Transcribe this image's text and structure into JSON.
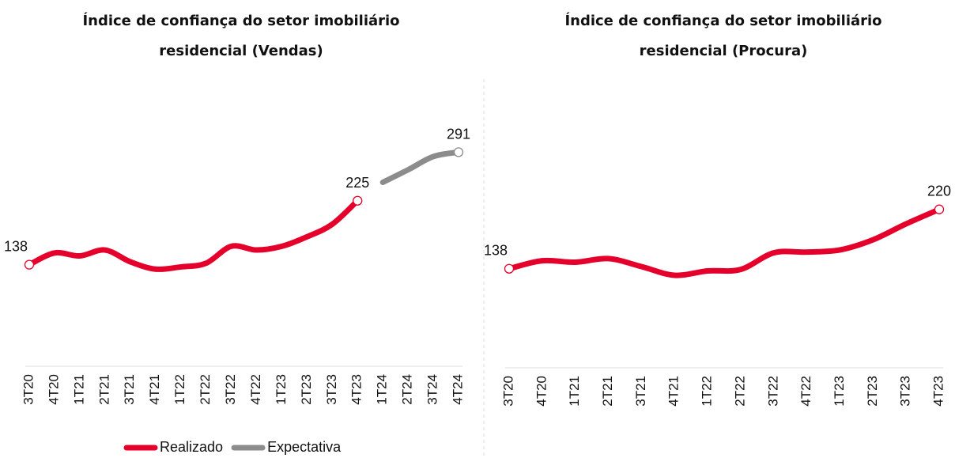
{
  "chart_data": [
    {
      "type": "line",
      "title": [
        "Índice de confiança do setor imobiliário",
        "residencial (Vendas)"
      ],
      "categories": [
        "3T20",
        "4T20",
        "1T21",
        "2T21",
        "3T21",
        "4T21",
        "1T22",
        "2T22",
        "3T22",
        "4T22",
        "1T23",
        "2T23",
        "3T23",
        "4T23",
        "1T24",
        "2T24",
        "3T24",
        "4T24"
      ],
      "series": [
        {
          "name": "Realizado",
          "color": "#e5002b",
          "values": [
            138,
            154,
            150,
            158,
            142,
            132,
            135,
            140,
            163,
            158,
            163,
            176,
            193,
            225,
            null,
            null,
            null,
            null
          ],
          "value_labels": [
            "138",
            null,
            null,
            null,
            null,
            null,
            null,
            null,
            null,
            null,
            null,
            null,
            null,
            "225",
            null,
            null,
            null,
            null
          ]
        },
        {
          "name": "Expectativa",
          "color": "#8c8c8c",
          "values": [
            null,
            null,
            null,
            null,
            null,
            null,
            null,
            null,
            null,
            null,
            null,
            null,
            null,
            null,
            250,
            267,
            285,
            291
          ],
          "value_labels": [
            null,
            null,
            null,
            null,
            null,
            null,
            null,
            null,
            null,
            null,
            null,
            null,
            null,
            null,
            null,
            null,
            null,
            "291"
          ]
        }
      ],
      "legend": "bottom"
    },
    {
      "type": "line",
      "title": [
        "Índice de confiança do setor imobiliário",
        "residencial (Procura)"
      ],
      "categories": [
        "3T20",
        "4T20",
        "1T21",
        "2T21",
        "3T21",
        "4T21",
        "1T22",
        "2T22",
        "3T22",
        "4T22",
        "1T23",
        "2T23",
        "3T23",
        "4T23"
      ],
      "series": [
        {
          "color": "#e5002b",
          "values": [
            138,
            149,
            147,
            152,
            141,
            129,
            135,
            137,
            160,
            161,
            164,
            178,
            200,
            220
          ],
          "value_labels": [
            "138",
            null,
            null,
            null,
            null,
            null,
            null,
            null,
            null,
            null,
            null,
            null,
            null,
            "220"
          ]
        }
      ]
    }
  ]
}
